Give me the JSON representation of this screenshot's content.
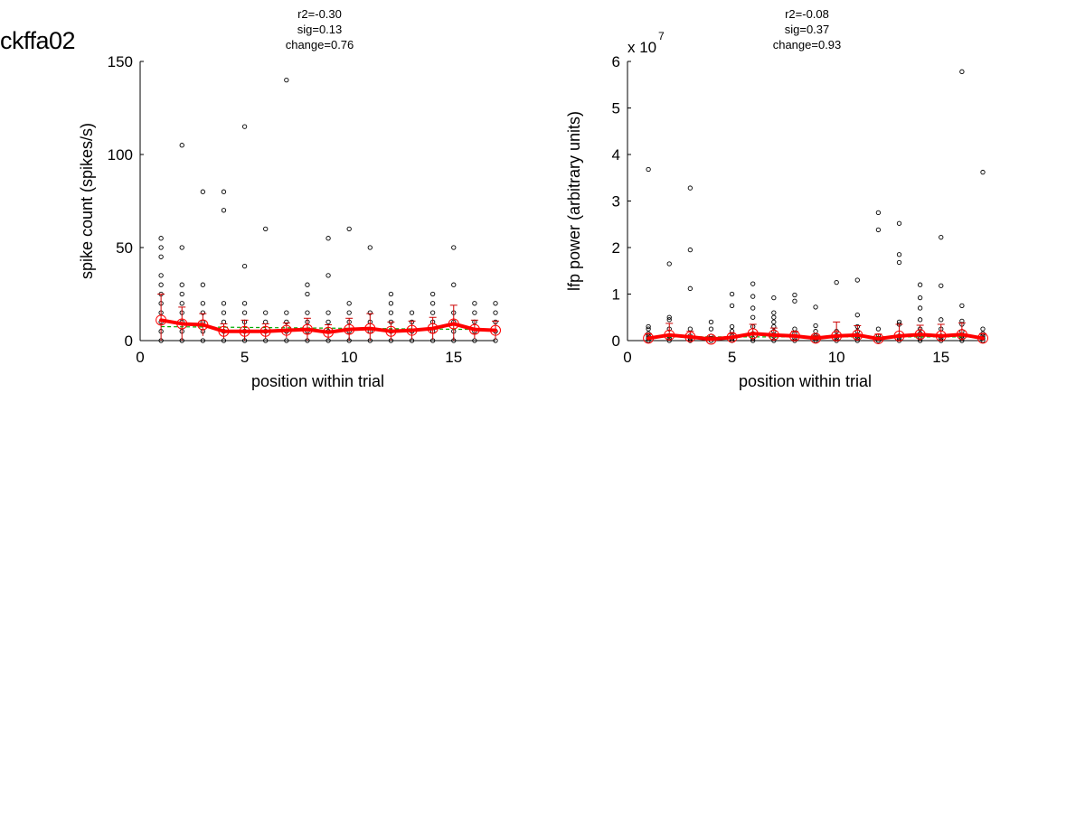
{
  "figure_title": "ckffa02",
  "colors": {
    "mean_line": "#ff0000",
    "error_bars": "#cc0000",
    "fit_line": "#00aa00",
    "raw_points": "#000000"
  },
  "chart_data": [
    {
      "type": "scatter",
      "stats": [
        "r2=-0.30",
        "sig=0.13",
        "change=0.76"
      ],
      "xlabel": "position within trial",
      "ylabel": "spike count (spikes/s)",
      "xlim": [
        0,
        17
      ],
      "ylim": [
        0,
        150
      ],
      "xticks": [
        "0",
        "5",
        "10",
        "15"
      ],
      "yticks": [
        "0",
        "50",
        "100",
        "150"
      ],
      "exponent_label": "",
      "grid": false,
      "x": [
        1,
        2,
        3,
        4,
        5,
        6,
        7,
        8,
        9,
        10,
        11,
        12,
        13,
        14,
        15,
        16,
        17
      ],
      "mean": [
        11,
        9,
        8.5,
        5,
        5,
        5,
        5.5,
        6,
        4.5,
        6,
        6.5,
        5,
        5.5,
        6.5,
        9,
        6,
        5.5
      ],
      "sem": [
        14,
        9,
        6,
        4,
        6,
        4,
        4,
        6,
        4,
        6,
        8,
        5,
        5,
        6,
        10,
        5,
        5
      ],
      "fit": [
        7.5,
        7.4,
        7.3,
        7.2,
        7.1,
        7.0,
        6.9,
        6.8,
        6.7,
        6.6,
        6.5,
        6.4,
        6.3,
        6.2,
        6.1,
        6.0,
        5.9
      ],
      "points": [
        [
          1,
          0
        ],
        [
          1,
          5
        ],
        [
          1,
          10
        ],
        [
          1,
          15
        ],
        [
          1,
          20
        ],
        [
          1,
          25
        ],
        [
          1,
          30
        ],
        [
          1,
          35
        ],
        [
          1,
          45
        ],
        [
          1,
          50
        ],
        [
          1,
          55
        ],
        [
          2,
          0
        ],
        [
          2,
          5
        ],
        [
          2,
          10
        ],
        [
          2,
          15
        ],
        [
          2,
          20
        ],
        [
          2,
          25
        ],
        [
          2,
          30
        ],
        [
          2,
          50
        ],
        [
          2,
          105
        ],
        [
          3,
          0
        ],
        [
          3,
          5
        ],
        [
          3,
          10
        ],
        [
          3,
          15
        ],
        [
          3,
          20
        ],
        [
          3,
          30
        ],
        [
          3,
          80
        ],
        [
          4,
          0
        ],
        [
          4,
          5
        ],
        [
          4,
          10
        ],
        [
          4,
          15
        ],
        [
          4,
          20
        ],
        [
          4,
          70
        ],
        [
          4,
          80
        ],
        [
          5,
          0
        ],
        [
          5,
          5
        ],
        [
          5,
          10
        ],
        [
          5,
          15
        ],
        [
          5,
          20
        ],
        [
          5,
          40
        ],
        [
          5,
          115
        ],
        [
          6,
          0
        ],
        [
          6,
          5
        ],
        [
          6,
          10
        ],
        [
          6,
          15
        ],
        [
          6,
          60
        ],
        [
          7,
          0
        ],
        [
          7,
          5
        ],
        [
          7,
          10
        ],
        [
          7,
          15
        ],
        [
          7,
          140
        ],
        [
          8,
          0
        ],
        [
          8,
          5
        ],
        [
          8,
          10
        ],
        [
          8,
          15
        ],
        [
          8,
          25
        ],
        [
          8,
          30
        ],
        [
          9,
          0
        ],
        [
          9,
          5
        ],
        [
          9,
          10
        ],
        [
          9,
          15
        ],
        [
          9,
          35
        ],
        [
          9,
          55
        ],
        [
          10,
          0
        ],
        [
          10,
          5
        ],
        [
          10,
          10
        ],
        [
          10,
          15
        ],
        [
          10,
          20
        ],
        [
          10,
          60
        ],
        [
          11,
          0
        ],
        [
          11,
          5
        ],
        [
          11,
          10
        ],
        [
          11,
          15
        ],
        [
          11,
          50
        ],
        [
          12,
          0
        ],
        [
          12,
          5
        ],
        [
          12,
          10
        ],
        [
          12,
          15
        ],
        [
          12,
          20
        ],
        [
          12,
          25
        ],
        [
          13,
          0
        ],
        [
          13,
          5
        ],
        [
          13,
          10
        ],
        [
          13,
          15
        ],
        [
          14,
          0
        ],
        [
          14,
          5
        ],
        [
          14,
          10
        ],
        [
          14,
          15
        ],
        [
          14,
          20
        ],
        [
          14,
          25
        ],
        [
          15,
          0
        ],
        [
          15,
          5
        ],
        [
          15,
          10
        ],
        [
          15,
          15
        ],
        [
          15,
          30
        ],
        [
          15,
          50
        ],
        [
          16,
          0
        ],
        [
          16,
          5
        ],
        [
          16,
          10
        ],
        [
          16,
          15
        ],
        [
          16,
          20
        ],
        [
          17,
          0
        ],
        [
          17,
          5
        ],
        [
          17,
          10
        ],
        [
          17,
          15
        ],
        [
          17,
          20
        ]
      ]
    },
    {
      "type": "scatter",
      "stats": [
        "r2=-0.08",
        "sig=0.37",
        "change=0.93"
      ],
      "xlabel": "position within trial",
      "ylabel": "lfp power (arbitrary units)",
      "xlim": [
        0,
        17
      ],
      "ylim": [
        0,
        6
      ],
      "xticks": [
        "0",
        "5",
        "10",
        "15"
      ],
      "yticks": [
        "0",
        "1",
        "2",
        "3",
        "4",
        "5",
        "6"
      ],
      "exponent_label": "x 10",
      "exponent_power": "7",
      "grid": false,
      "x": [
        1,
        2,
        3,
        4,
        5,
        6,
        7,
        8,
        9,
        10,
        11,
        12,
        13,
        14,
        15,
        16,
        17
      ],
      "mean": [
        0.05,
        0.12,
        0.08,
        0.03,
        0.07,
        0.15,
        0.12,
        0.1,
        0.05,
        0.1,
        0.12,
        0.04,
        0.1,
        0.13,
        0.1,
        0.13,
        0.05
      ],
      "sem": [
        0.1,
        0.25,
        0.12,
        0.05,
        0.08,
        0.2,
        0.15,
        0.1,
        0.06,
        0.3,
        0.2,
        0.1,
        0.25,
        0.2,
        0.25,
        0.25,
        0.1
      ],
      "fit": [
        0.08,
        0.08,
        0.08,
        0.08,
        0.08,
        0.08,
        0.08,
        0.08,
        0.08,
        0.08,
        0.08,
        0.08,
        0.08,
        0.08,
        0.08,
        0.08,
        0.08
      ],
      "points": [
        [
          1,
          0
        ],
        [
          1,
          0.05
        ],
        [
          1,
          0.1
        ],
        [
          1,
          0.15
        ],
        [
          1,
          0.25
        ],
        [
          1,
          0.3
        ],
        [
          1,
          3.68
        ],
        [
          2,
          0
        ],
        [
          2,
          0.05
        ],
        [
          2,
          0.1
        ],
        [
          2,
          0.25
        ],
        [
          2,
          0.45
        ],
        [
          2,
          0.5
        ],
        [
          2,
          1.65
        ],
        [
          3,
          0
        ],
        [
          3,
          0.05
        ],
        [
          3,
          0.1
        ],
        [
          3,
          0.25
        ],
        [
          3,
          1.12
        ],
        [
          3,
          1.95
        ],
        [
          3,
          3.28
        ],
        [
          4,
          0
        ],
        [
          4,
          0.05
        ],
        [
          4,
          0.1
        ],
        [
          4,
          0.25
        ],
        [
          4,
          0.4
        ],
        [
          5,
          0
        ],
        [
          5,
          0.05
        ],
        [
          5,
          0.1
        ],
        [
          5,
          0.2
        ],
        [
          5,
          0.3
        ],
        [
          5,
          0.75
        ],
        [
          5,
          1.0
        ],
        [
          6,
          0
        ],
        [
          6,
          0.05
        ],
        [
          6,
          0.15
        ],
        [
          6,
          0.3
        ],
        [
          6,
          0.5
        ],
        [
          6,
          0.7
        ],
        [
          6,
          0.95
        ],
        [
          6,
          1.22
        ],
        [
          7,
          0
        ],
        [
          7,
          0.1
        ],
        [
          7,
          0.2
        ],
        [
          7,
          0.3
        ],
        [
          7,
          0.4
        ],
        [
          7,
          0.5
        ],
        [
          7,
          0.6
        ],
        [
          7,
          0.92
        ],
        [
          8,
          0
        ],
        [
          8,
          0.05
        ],
        [
          8,
          0.15
        ],
        [
          8,
          0.25
        ],
        [
          8,
          0.85
        ],
        [
          8,
          0.98
        ],
        [
          9,
          0
        ],
        [
          9,
          0.05
        ],
        [
          9,
          0.1
        ],
        [
          9,
          0.2
        ],
        [
          9,
          0.32
        ],
        [
          9,
          0.72
        ],
        [
          10,
          0
        ],
        [
          10,
          0.05
        ],
        [
          10,
          0.1
        ],
        [
          10,
          0.2
        ],
        [
          10,
          1.25
        ],
        [
          11,
          0
        ],
        [
          11,
          0.05
        ],
        [
          11,
          0.1
        ],
        [
          11,
          0.2
        ],
        [
          11,
          0.3
        ],
        [
          11,
          0.55
        ],
        [
          11,
          1.3
        ],
        [
          12,
          0
        ],
        [
          12,
          0.05
        ],
        [
          12,
          0.1
        ],
        [
          12,
          0.25
        ],
        [
          12,
          2.38
        ],
        [
          12,
          2.75
        ],
        [
          13,
          0
        ],
        [
          13,
          0.05
        ],
        [
          13,
          0.1
        ],
        [
          13,
          0.35
        ],
        [
          13,
          0.4
        ],
        [
          13,
          1.68
        ],
        [
          13,
          1.85
        ],
        [
          13,
          2.52
        ],
        [
          14,
          0
        ],
        [
          14,
          0.05
        ],
        [
          14,
          0.15
        ],
        [
          14,
          0.25
        ],
        [
          14,
          0.45
        ],
        [
          14,
          0.7
        ],
        [
          14,
          0.92
        ],
        [
          14,
          1.2
        ],
        [
          15,
          0
        ],
        [
          15,
          0.05
        ],
        [
          15,
          0.1
        ],
        [
          15,
          0.25
        ],
        [
          15,
          0.45
        ],
        [
          15,
          1.18
        ],
        [
          15,
          2.22
        ],
        [
          16,
          0
        ],
        [
          16,
          0.05
        ],
        [
          16,
          0.1
        ],
        [
          16,
          0.2
        ],
        [
          16,
          0.35
        ],
        [
          16,
          0.42
        ],
        [
          16,
          0.75
        ],
        [
          16,
          5.78
        ],
        [
          17,
          0
        ],
        [
          17,
          0.05
        ],
        [
          17,
          0.1
        ],
        [
          17,
          0.15
        ],
        [
          17,
          0.25
        ],
        [
          17,
          3.62
        ]
      ]
    }
  ]
}
